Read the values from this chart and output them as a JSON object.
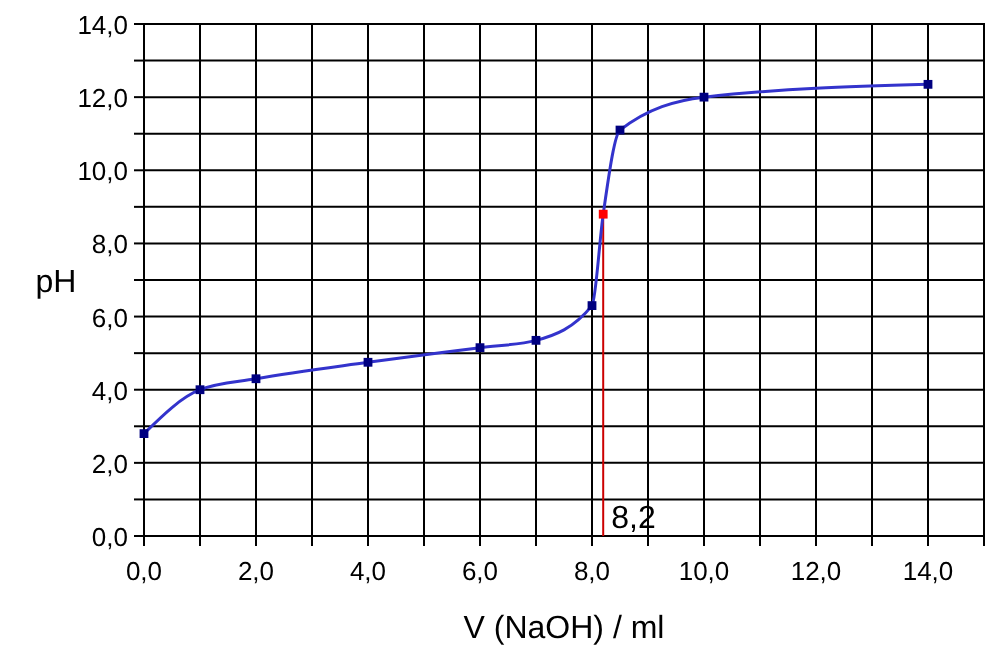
{
  "chart_data": {
    "type": "line",
    "xlabel": "V (NaOH) / ml",
    "ylabel": "pH",
    "x": [
      0,
      1,
      2,
      4,
      6,
      7,
      8,
      8.2,
      8.5,
      10,
      14
    ],
    "series": [
      {
        "color": "#3333cc",
        "values": [
          2.8,
          4.0,
          4.3,
          4.75,
          5.15,
          5.35,
          6.3,
          8.8,
          11.1,
          12.0,
          12.35
        ],
        "colors": [
          "#000080",
          "#000080",
          "#000080",
          "#000080",
          "#000080",
          "#000080",
          "#000080",
          "#ff0000",
          "#000080",
          "#000080",
          "#000080"
        ]
      }
    ],
    "xlim": [
      0,
      15
    ],
    "xticks": [
      {
        "value": 0,
        "label": "0,0"
      },
      {
        "value": 1,
        "label": null
      },
      {
        "value": 2,
        "label": "2,0"
      },
      {
        "value": 3,
        "label": null
      },
      {
        "value": 4,
        "label": "4,0"
      },
      {
        "value": 5,
        "label": null
      },
      {
        "value": 6,
        "label": "6,0"
      },
      {
        "value": 7,
        "label": null
      },
      {
        "value": 8,
        "label": "8,0"
      },
      {
        "value": 9,
        "label": null
      },
      {
        "value": 10,
        "label": "10,0"
      },
      {
        "value": 11,
        "label": null
      },
      {
        "value": 12,
        "label": "12,0"
      },
      {
        "value": 13,
        "label": null
      },
      {
        "value": 14,
        "label": "14,0"
      },
      {
        "value": 15,
        "label": null
      }
    ],
    "ylim": [
      0,
      14
    ],
    "yticks": [
      {
        "value": 0,
        "label": "0,0"
      },
      {
        "value": 1,
        "label": null
      },
      {
        "value": 2,
        "label": "2,0"
      },
      {
        "value": 3,
        "label": null
      },
      {
        "value": 4,
        "label": "4,0"
      },
      {
        "value": 5,
        "label": null
      },
      {
        "value": 6,
        "label": "6,0"
      },
      {
        "value": 7,
        "label": null
      },
      {
        "value": 8,
        "label": "8,0"
      },
      {
        "value": 9,
        "label": null
      },
      {
        "value": 10,
        "label": "10,0"
      },
      {
        "value": 11,
        "label": null
      },
      {
        "value": 12,
        "label": "12,0"
      },
      {
        "value": 13,
        "label": null
      },
      {
        "value": 14,
        "label": "14,0"
      }
    ],
    "ref_lines": [
      {
        "axis": "x",
        "value": 8.2,
        "label": "8,2",
        "color": "#cc0000"
      }
    ],
    "grid": true,
    "marker": "square",
    "line_style": "solid"
  }
}
